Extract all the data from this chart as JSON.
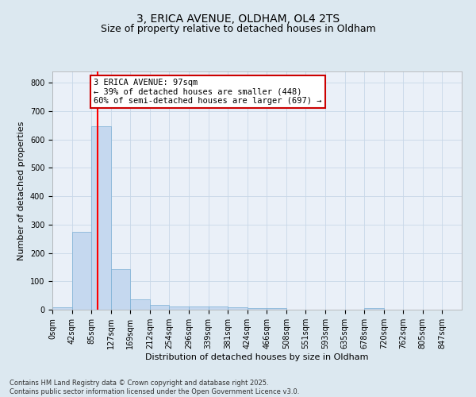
{
  "title1": "3, ERICA AVENUE, OLDHAM, OL4 2TS",
  "title2": "Size of property relative to detached houses in Oldham",
  "xlabel": "Distribution of detached houses by size in Oldham",
  "ylabel": "Number of detached properties",
  "bin_labels": [
    "0sqm",
    "42sqm",
    "85sqm",
    "127sqm",
    "169sqm",
    "212sqm",
    "254sqm",
    "296sqm",
    "339sqm",
    "381sqm",
    "424sqm",
    "466sqm",
    "508sqm",
    "551sqm",
    "593sqm",
    "635sqm",
    "678sqm",
    "720sqm",
    "762sqm",
    "805sqm",
    "847sqm"
  ],
  "bar_values": [
    8,
    275,
    648,
    142,
    37,
    18,
    12,
    10,
    10,
    8,
    5,
    5,
    0,
    0,
    0,
    0,
    5,
    0,
    0,
    0,
    0
  ],
  "bar_color": "#c5d8ef",
  "bar_edge_color": "#7aafd4",
  "red_line_x": 97,
  "bin_width": 42,
  "annotation_text": "3 ERICA AVENUE: 97sqm\n← 39% of detached houses are smaller (448)\n60% of semi-detached houses are larger (697) →",
  "annotation_box_color": "#ffffff",
  "annotation_box_edge": "#cc0000",
  "ylim": [
    0,
    840
  ],
  "yticks": [
    0,
    100,
    200,
    300,
    400,
    500,
    600,
    700,
    800
  ],
  "grid_color": "#c8d8e8",
  "background_color": "#dce8f0",
  "plot_bg_color": "#eaf0f8",
  "footnote": "Contains HM Land Registry data © Crown copyright and database right 2025.\nContains public sector information licensed under the Open Government Licence v3.0.",
  "title_fontsize": 10,
  "subtitle_fontsize": 9,
  "axis_label_fontsize": 8,
  "tick_fontsize": 7,
  "annot_fontsize": 7.5,
  "footnote_fontsize": 6
}
